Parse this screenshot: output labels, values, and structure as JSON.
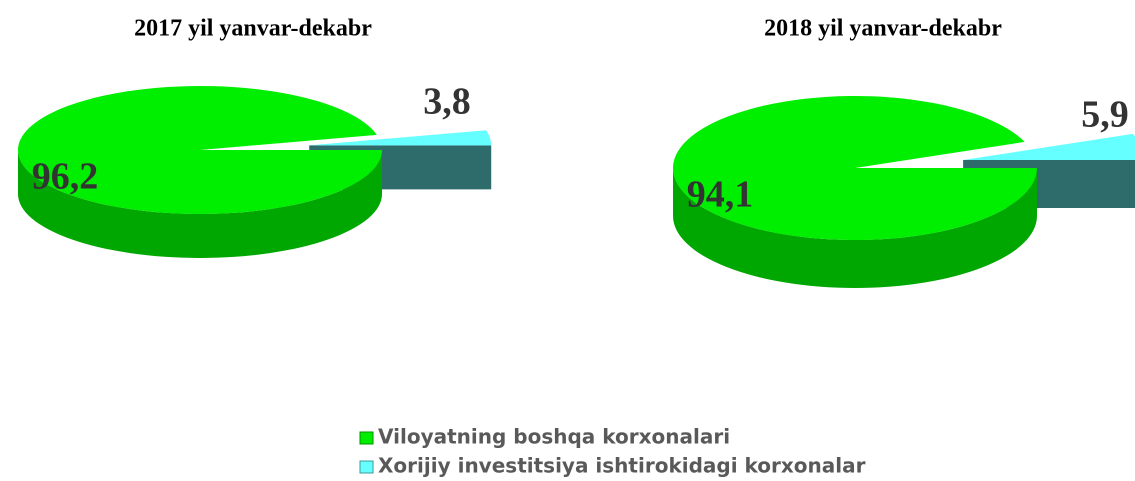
{
  "chart_data": [
    {
      "type": "pie",
      "title": "2017 yil yanvar-dekabr",
      "categories": [
        "Viloyatning boshqa korxonalari",
        "Xorijiy investitsiya ishtirokidagi korxonalar"
      ],
      "values": [
        96.2,
        3.8
      ],
      "value_labels": [
        "96,2",
        "3,8"
      ],
      "colors": [
        "#00ee00",
        "#66ffff"
      ]
    },
    {
      "type": "pie",
      "title": "2018 yil yanvar-dekabr",
      "categories": [
        "Viloyatning boshqa korxonalari",
        "Xorijiy investitsiya ishtirokidagi korxonalar"
      ],
      "values": [
        94.1,
        5.9
      ],
      "value_labels": [
        "94,1",
        "5,9"
      ],
      "colors": [
        "#00ee00",
        "#66ffff"
      ]
    }
  ]
}
